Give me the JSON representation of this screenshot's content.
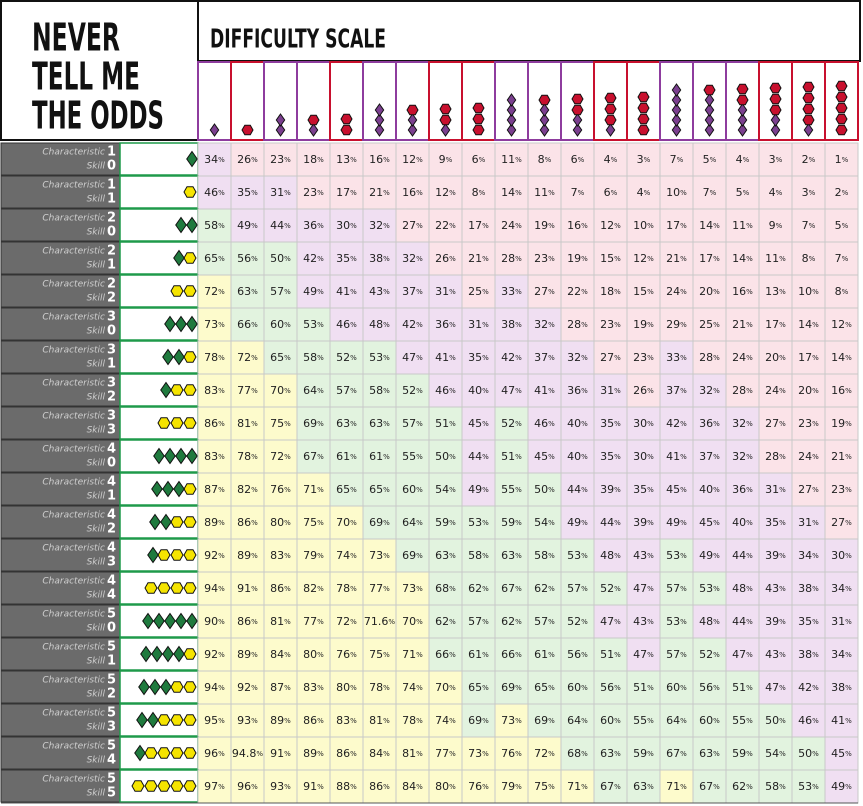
{
  "title_lines": [
    "NEVER",
    "TELL ME",
    "THE ODDS"
  ],
  "header": "DIFFICULTY SCALE",
  "characteristic_label": "Characteristic",
  "skill_label": "Skill",
  "unit": "%",
  "rows": [
    {
      "characteristic": 1,
      "skill": 0,
      "values": [
        34,
        26,
        23,
        18,
        13,
        16,
        12,
        9,
        6,
        11,
        8,
        6,
        4,
        3,
        7,
        5,
        4,
        3,
        2,
        1
      ]
    },
    {
      "characteristic": 1,
      "skill": 1,
      "values": [
        46,
        35,
        31,
        23,
        17,
        21,
        16,
        12,
        8,
        14,
        11,
        7,
        6,
        4,
        10,
        7,
        5,
        4,
        3,
        2
      ]
    },
    {
      "characteristic": 2,
      "skill": 0,
      "values": [
        58,
        49,
        44,
        36,
        30,
        32,
        27,
        22,
        17,
        24,
        19,
        16,
        12,
        10,
        17,
        14,
        11,
        9,
        7,
        5
      ]
    },
    {
      "characteristic": 2,
      "skill": 1,
      "values": [
        65,
        56,
        50,
        42,
        35,
        38,
        32,
        26,
        21,
        28,
        23,
        19,
        15,
        12,
        21,
        17,
        14,
        11,
        8,
        7
      ]
    },
    {
      "characteristic": 2,
      "skill": 2,
      "values": [
        72,
        63,
        57,
        49,
        41,
        43,
        37,
        31,
        25,
        33,
        27,
        22,
        18,
        15,
        24,
        20,
        16,
        13,
        10,
        8
      ]
    },
    {
      "characteristic": 3,
      "skill": 0,
      "values": [
        73,
        66,
        60,
        53,
        46,
        48,
        42,
        36,
        31,
        38,
        32,
        28,
        23,
        19,
        29,
        25,
        21,
        17,
        14,
        12
      ]
    },
    {
      "characteristic": 3,
      "skill": 1,
      "values": [
        78,
        72,
        65,
        58,
        52,
        53,
        47,
        41,
        35,
        42,
        37,
        32,
        27,
        23,
        33,
        28,
        24,
        20,
        17,
        14
      ]
    },
    {
      "characteristic": 3,
      "skill": 2,
      "values": [
        83,
        77,
        70,
        64,
        57,
        58,
        52,
        46,
        40,
        47,
        41,
        36,
        31,
        26,
        37,
        32,
        28,
        24,
        20,
        16
      ]
    },
    {
      "characteristic": 3,
      "skill": 3,
      "values": [
        86,
        81,
        75,
        69,
        63,
        63,
        57,
        51,
        45,
        52,
        46,
        40,
        35,
        30,
        42,
        36,
        32,
        27,
        23,
        19
      ]
    },
    {
      "characteristic": 4,
      "skill": 0,
      "values": [
        83,
        78,
        72,
        67,
        61,
        61,
        55,
        50,
        44,
        51,
        45,
        40,
        35,
        30,
        41,
        37,
        32,
        28,
        24,
        21
      ]
    },
    {
      "characteristic": 4,
      "skill": 1,
      "values": [
        87,
        82,
        76,
        71,
        65,
        65,
        60,
        54,
        49,
        55,
        50,
        44,
        39,
        35,
        45,
        40,
        36,
        31,
        27,
        23
      ]
    },
    {
      "characteristic": 4,
      "skill": 2,
      "values": [
        89,
        86,
        80,
        75,
        70,
        69,
        64,
        59,
        53,
        59,
        54,
        49,
        44,
        39,
        49,
        45,
        40,
        35,
        31,
        27
      ]
    },
    {
      "characteristic": 4,
      "skill": 3,
      "values": [
        92,
        89,
        83,
        79,
        74,
        73,
        69,
        63,
        58,
        63,
        58,
        53,
        48,
        43,
        53,
        49,
        44,
        39,
        34,
        30
      ]
    },
    {
      "characteristic": 4,
      "skill": 4,
      "values": [
        94,
        91,
        86,
        82,
        78,
        77,
        73,
        68,
        62,
        67,
        62,
        57,
        52,
        47,
        57,
        53,
        48,
        43,
        38,
        34
      ]
    },
    {
      "characteristic": 5,
      "skill": 0,
      "values": [
        90,
        86,
        81,
        77,
        72,
        71.6,
        70,
        62,
        57,
        62,
        57,
        52,
        47,
        43,
        53,
        48,
        44,
        39,
        35,
        31
      ]
    },
    {
      "characteristic": 5,
      "skill": 1,
      "values": [
        92,
        89,
        84,
        80,
        76,
        75,
        71,
        66,
        61,
        66,
        61,
        56,
        51,
        47,
        57,
        52,
        47,
        43,
        38,
        34
      ]
    },
    {
      "characteristic": 5,
      "skill": 2,
      "values": [
        94,
        92,
        87,
        83,
        80,
        78,
        74,
        70,
        65,
        69,
        65,
        60,
        56,
        51,
        60,
        56,
        51,
        47,
        42,
        38
      ]
    },
    {
      "characteristic": 5,
      "skill": 3,
      "values": [
        95,
        93,
        89,
        86,
        83,
        81,
        78,
        74,
        69,
        73,
        69,
        64,
        60,
        55,
        64,
        60,
        55,
        50,
        46,
        41
      ]
    },
    {
      "characteristic": 5,
      "skill": 4,
      "values": [
        96,
        94.8,
        91,
        89,
        86,
        84,
        81,
        77,
        73,
        76,
        72,
        68,
        63,
        59,
        67,
        63,
        59,
        54,
        50,
        45
      ]
    },
    {
      "characteristic": 5,
      "skill": 5,
      "values": [
        97,
        96,
        93,
        91,
        88,
        86,
        84,
        80,
        76,
        79,
        75,
        71,
        67,
        63,
        71,
        67,
        62,
        58,
        53,
        49
      ]
    }
  ]
}
